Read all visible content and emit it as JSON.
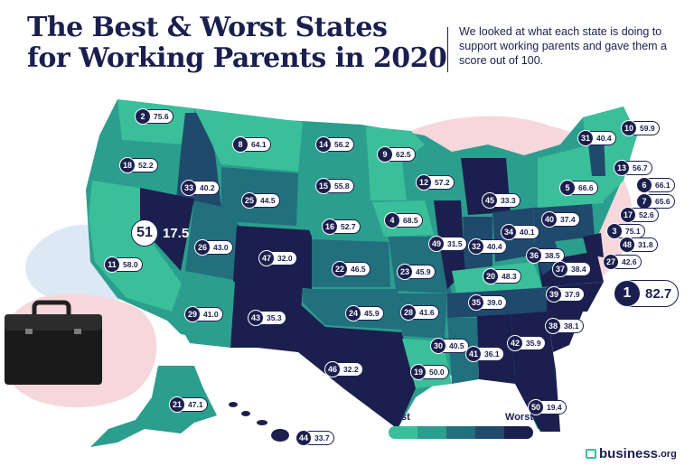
{
  "title": {
    "line1": "The Best & Worst States",
    "line2": "for Working Parents in 2020"
  },
  "subtitle": "We looked at what each state is doing to support working parents and gave them a score out of 100.",
  "legend": {
    "best_label": "Best",
    "worst_label": "Worst",
    "colors": [
      "#3bbf9b",
      "#2b9e8e",
      "#226f7e",
      "#1f4a6c",
      "#1b1f4e"
    ]
  },
  "logo": {
    "name": "business",
    "tld": ".org"
  },
  "colors": {
    "navy": "#1b1f4e",
    "teal": "#3bbf9b",
    "dark_teal": "#226f7e",
    "pink_blob": "#f6d8dc",
    "blue_blob": "#dce9f5"
  },
  "states": [
    {
      "rank": "1",
      "score": "82.7"
    },
    {
      "rank": "2",
      "score": "75.6"
    },
    {
      "rank": "3",
      "score": "75.1"
    },
    {
      "rank": "4",
      "score": "68.5"
    },
    {
      "rank": "5",
      "score": "66.6"
    },
    {
      "rank": "6",
      "score": "66.1"
    },
    {
      "rank": "7",
      "score": "65.6"
    },
    {
      "rank": "8",
      "score": "64.1"
    },
    {
      "rank": "9",
      "score": "62.5"
    },
    {
      "rank": "10",
      "score": "59.9"
    },
    {
      "rank": "11",
      "score": "58.0"
    },
    {
      "rank": "12",
      "score": "57.2"
    },
    {
      "rank": "13",
      "score": "56.7"
    },
    {
      "rank": "14",
      "score": "56.2"
    },
    {
      "rank": "15",
      "score": "55.8"
    },
    {
      "rank": "16",
      "score": "52.7"
    },
    {
      "rank": "17",
      "score": "52.6"
    },
    {
      "rank": "18",
      "score": "52.2"
    },
    {
      "rank": "19",
      "score": "50.0"
    },
    {
      "rank": "20",
      "score": "48.3"
    },
    {
      "rank": "21",
      "score": "47.1"
    },
    {
      "rank": "22",
      "score": "46.5"
    },
    {
      "rank": "23",
      "score": "45.9"
    },
    {
      "rank": "24",
      "score": "45.9"
    },
    {
      "rank": "25",
      "score": "44.5"
    },
    {
      "rank": "26",
      "score": "43.0"
    },
    {
      "rank": "27",
      "score": "42.6"
    },
    {
      "rank": "28",
      "score": "41.6"
    },
    {
      "rank": "29",
      "score": "41.0"
    },
    {
      "rank": "30",
      "score": "40.5"
    },
    {
      "rank": "31",
      "score": "40.4"
    },
    {
      "rank": "32",
      "score": "40.4"
    },
    {
      "rank": "33",
      "score": "40.2"
    },
    {
      "rank": "34",
      "score": "40.1"
    },
    {
      "rank": "35",
      "score": "39.0"
    },
    {
      "rank": "36",
      "score": "38.5"
    },
    {
      "rank": "37",
      "score": "38.4"
    },
    {
      "rank": "38",
      "score": "38.1"
    },
    {
      "rank": "39",
      "score": "37.9"
    },
    {
      "rank": "40",
      "score": "37.4"
    },
    {
      "rank": "41",
      "score": "36.1"
    },
    {
      "rank": "42",
      "score": "35.9"
    },
    {
      "rank": "43",
      "score": "35.3"
    },
    {
      "rank": "44",
      "score": "33.7"
    },
    {
      "rank": "45",
      "score": "33.3"
    },
    {
      "rank": "46",
      "score": "32.2"
    },
    {
      "rank": "47",
      "score": "32.0"
    },
    {
      "rank": "48",
      "score": "31.8"
    },
    {
      "rank": "49",
      "score": "31.5"
    },
    {
      "rank": "50",
      "score": "19.4"
    },
    {
      "rank": "51",
      "score": "17.5"
    }
  ]
}
